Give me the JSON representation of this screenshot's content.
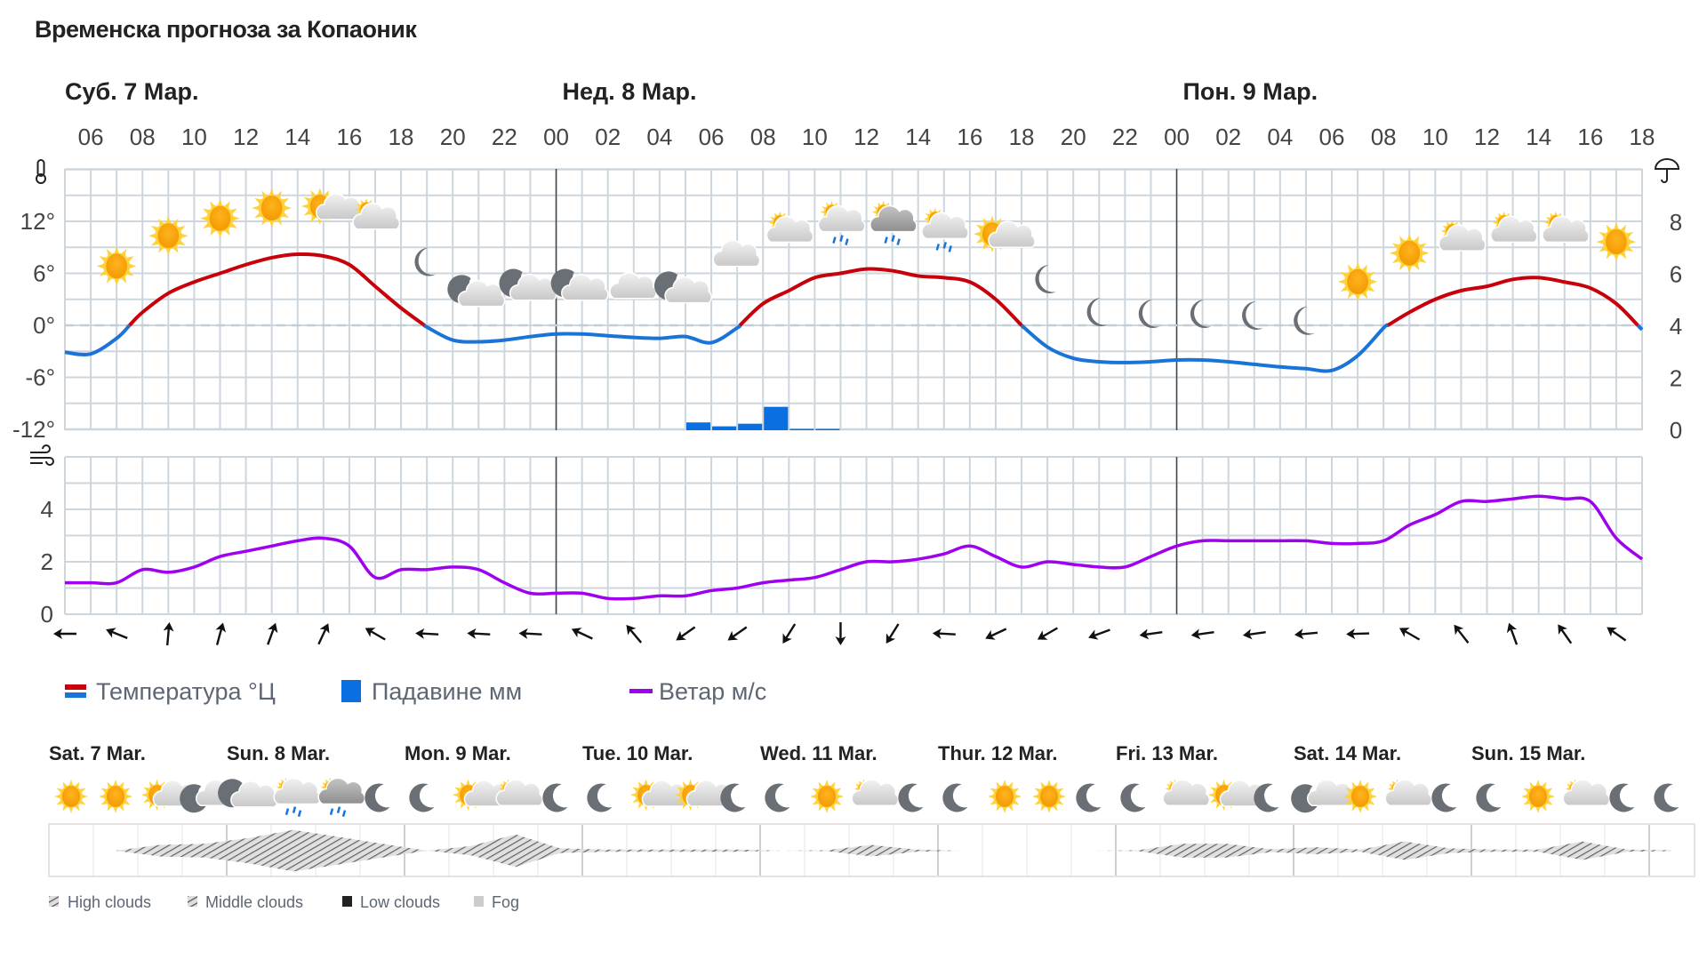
{
  "title": "Временска прогноза за Копаоник",
  "chart_data": [
    {
      "type": "line",
      "day_labels": [
        "Суб. 7 Мар.",
        "Нед. 8 Мар.",
        "Пон. 9 Мар."
      ],
      "hour_tick_labels": [
        "06",
        "08",
        "10",
        "12",
        "14",
        "16",
        "18",
        "20",
        "22",
        "00",
        "02",
        "04",
        "06",
        "08",
        "10",
        "12",
        "14",
        "16",
        "18",
        "20",
        "22",
        "00",
        "02",
        "04",
        "06",
        "08",
        "10",
        "12",
        "14",
        "16",
        "18"
      ],
      "hours": [
        "05",
        "06",
        "07",
        "08",
        "09",
        "10",
        "11",
        "12",
        "13",
        "14",
        "15",
        "16",
        "17",
        "18",
        "19",
        "20",
        "21",
        "22",
        "23",
        "00",
        "01",
        "02",
        "03",
        "04",
        "05",
        "06",
        "07",
        "08",
        "09",
        "10",
        "11",
        "12",
        "13",
        "14",
        "15",
        "16",
        "17",
        "18",
        "19",
        "20",
        "21",
        "22",
        "23",
        "00",
        "01",
        "02",
        "03",
        "04",
        "05",
        "06",
        "07",
        "08",
        "09",
        "10",
        "11",
        "12",
        "13",
        "14",
        "15",
        "16",
        "17",
        "18"
      ],
      "temperature": {
        "name": "Температура °Ц",
        "unit": "°C",
        "values": [
          -3.1,
          -3.3,
          -1.5,
          1.5,
          3.7,
          5,
          6,
          7,
          7.8,
          8.2,
          8,
          7,
          4.5,
          2,
          -0.2,
          -1.7,
          -1.9,
          -1.7,
          -1.3,
          -1,
          -1,
          -1.2,
          -1.4,
          -1.5,
          -1.3,
          -2,
          -0.3,
          2.5,
          4,
          5.5,
          6,
          6.5,
          6.3,
          5.7,
          5.5,
          5,
          3,
          0,
          -2.5,
          -3.8,
          -4.2,
          -4.3,
          -4.2,
          -4,
          -4,
          -4.2,
          -4.5,
          -4.8,
          -5,
          -5.2,
          -3.5,
          -0.3,
          1.5,
          3,
          4,
          4.5,
          5.3,
          5.5,
          5,
          4.3,
          2.5,
          -0.5
        ],
        "color_above_zero": "#c8000a",
        "color_below_zero": "#1a74d8"
      },
      "precipitation": {
        "name": "Падавине мм",
        "type": "bar",
        "hours": [
          "10",
          "11",
          "12",
          "13",
          "14",
          "15"
        ],
        "day": "Нед. 8 Мар.",
        "values": [
          0.3,
          0.15,
          0.25,
          0.9,
          0.05,
          0.05
        ],
        "color": "#0a6fe0"
      },
      "y_left": {
        "ticks": [
          "12°",
          "6°",
          "0°",
          "-6°",
          "-12°"
        ],
        "values": [
          12,
          6,
          0,
          -6,
          -12
        ],
        "range": [
          -12,
          18
        ],
        "icon": "thermometer-icon"
      },
      "y_right": {
        "ticks": [
          "8",
          "6",
          "4",
          "2",
          "0"
        ],
        "values": [
          8,
          6,
          4,
          2,
          0
        ],
        "range": [
          0,
          10
        ],
        "icon": "umbrella-icon"
      },
      "weather_icons_hours": [
        "07",
        "09",
        "11",
        "13",
        "15",
        "17",
        "19",
        "21",
        "23",
        "01",
        "03",
        "05",
        "07",
        "09",
        "11",
        "13",
        "15",
        "17",
        "19",
        "21",
        "23",
        "01",
        "03",
        "05",
        "07",
        "09",
        "11",
        "13",
        "15",
        "17"
      ],
      "weather_icons": [
        "sun",
        "sun",
        "sun",
        "sun",
        "partly-cloudy-day",
        "cloudy-day",
        "moon",
        "cloudy-night",
        "cloudy-night",
        "cloudy-night",
        "cloud",
        "cloudy-night",
        "cloud",
        "cloudy-day",
        "rain-day",
        "rain-day-dark",
        "rain-day",
        "partly-cloudy-day",
        "moon",
        "moon",
        "moon",
        "moon",
        "moon",
        "moon",
        "sun",
        "sun",
        "cloudy-day",
        "cloudy-day",
        "cloudy-day",
        "sun"
      ],
      "grid": true
    },
    {
      "type": "line",
      "wind": {
        "name": "Ветар м/с",
        "unit": "m/s",
        "values": [
          1.2,
          1.2,
          1.2,
          1.7,
          1.6,
          1.8,
          2.2,
          2.4,
          2.6,
          2.8,
          2.9,
          2.6,
          1.4,
          1.7,
          1.7,
          1.8,
          1.7,
          1.2,
          0.8,
          0.8,
          0.8,
          0.6,
          0.6,
          0.7,
          0.7,
          0.9,
          1.0,
          1.2,
          1.3,
          1.4,
          1.7,
          2.0,
          2.0,
          2.1,
          2.3,
          2.6,
          2.2,
          1.8,
          2.0,
          1.9,
          1.8,
          1.8,
          2.2,
          2.6,
          2.8,
          2.8,
          2.8,
          2.8,
          2.8,
          2.7,
          2.7,
          2.8,
          3.4,
          3.8,
          4.3,
          4.3,
          4.4,
          4.5,
          4.4,
          4.3,
          2.9,
          2.1
        ],
        "color": "#a000f0"
      },
      "y_left": {
        "ticks": [
          "4",
          "2",
          "0"
        ],
        "values": [
          4,
          2,
          0
        ],
        "range": [
          0,
          6
        ],
        "icon": "wind-icon"
      },
      "wind_direction_hours": [
        "05",
        "07",
        "09",
        "11",
        "13",
        "15",
        "17",
        "19",
        "21",
        "23",
        "01",
        "03",
        "05",
        "07",
        "09",
        "11",
        "13",
        "15",
        "17",
        "19",
        "21",
        "23",
        "01",
        "03",
        "05",
        "07",
        "09",
        "11",
        "13",
        "15",
        "17"
      ],
      "wind_direction_deg": [
        270,
        292,
        5,
        15,
        20,
        25,
        300,
        273,
        273,
        273,
        295,
        320,
        235,
        235,
        212,
        180,
        212,
        273,
        245,
        240,
        250,
        262,
        262,
        262,
        265,
        268,
        300,
        322,
        340,
        325,
        305
      ],
      "grid": true
    }
  ],
  "legend": {
    "temperature": "Температура °Ц",
    "precipitation": "Падавине мм",
    "wind": "Ветар м/с"
  },
  "outlook": {
    "days": [
      "Sat. 7 Mar.",
      "Sun. 8 Mar.",
      "Mon. 9 Mar.",
      "Tue. 10 Mar.",
      "Wed. 11 Mar.",
      "Thur. 12 Mar.",
      "Fri. 13 Mar.",
      "Sat. 14 Mar.",
      "Sun. 15 Mar."
    ],
    "icons": [
      "sun",
      "sun",
      "partly-cloudy-day",
      "partly-cloudy-night",
      "cloudy-night",
      "rain-day",
      "rain-day-dark",
      "moon",
      "moon",
      "partly-cloudy-day",
      "cloudy-day",
      "moon",
      "moon",
      "partly-cloudy-day",
      "partly-cloudy-day",
      "moon",
      "moon",
      "sun",
      "cloudy-day",
      "moon",
      "moon",
      "sun",
      "sun",
      "moon",
      "moon",
      "cloudy-day",
      "partly-cloudy-day",
      "moon",
      "partly-cloudy-night",
      "sun",
      "cloudy-day",
      "moon",
      "moon",
      "sun",
      "cloudy-day",
      "moon",
      "moon"
    ],
    "cloud_levels": [
      0,
      0,
      0.25,
      0.3,
      0.55,
      0.9,
      0.6,
      0.3,
      0,
      0.2,
      0.7,
      0.1,
      0.05,
      0.05,
      0.05,
      0.05,
      0,
      0.02,
      0.25,
      0.05,
      0,
      0,
      0,
      0,
      0.02,
      0.3,
      0.3,
      0.06,
      0.15,
      0.05,
      0.4,
      0.1,
      0.05,
      0.05,
      0.4,
      0.05,
      0.02
    ],
    "cloud_legend": [
      "High clouds",
      "Middle clouds",
      "Low clouds",
      "Fog"
    ]
  }
}
